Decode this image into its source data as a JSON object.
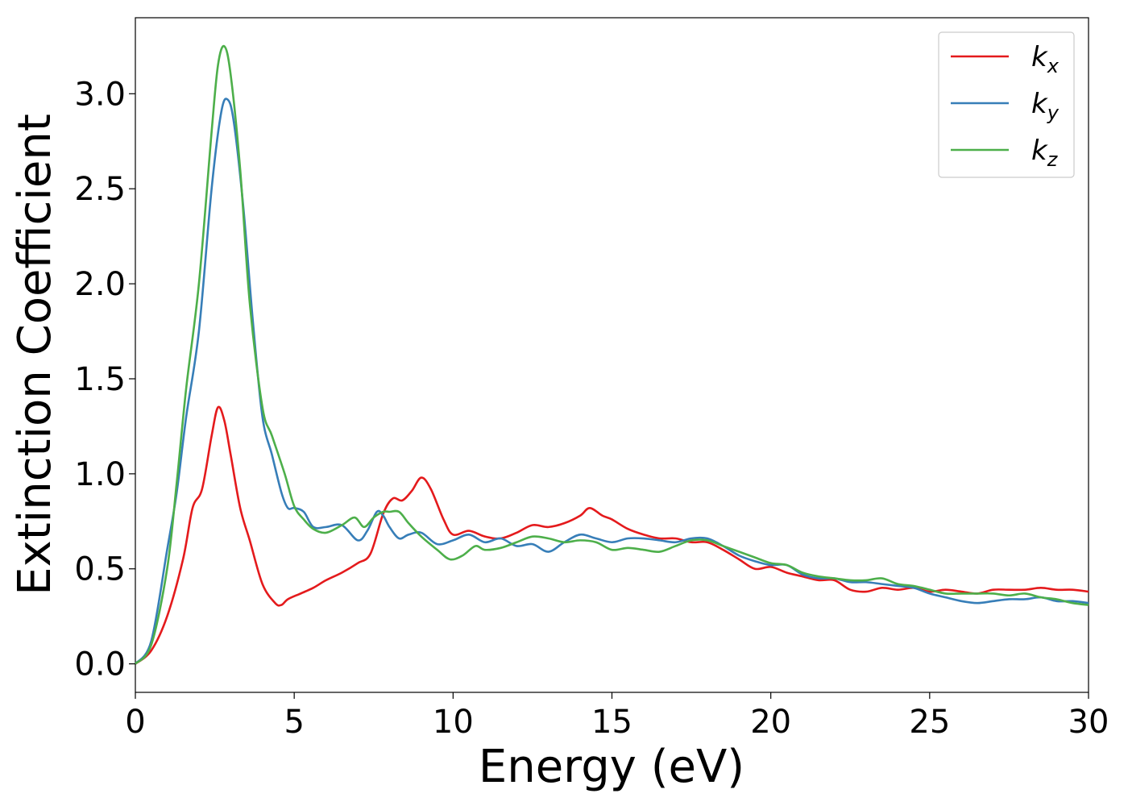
{
  "chart_data": {
    "type": "line",
    "title": "",
    "xlabel": "Energy (eV)",
    "ylabel": "Extinction Coefficient",
    "xlim": [
      0,
      30
    ],
    "ylim": [
      -0.15,
      3.4
    ],
    "xticks": [
      0,
      5,
      10,
      15,
      20,
      25,
      30
    ],
    "xtick_labels": [
      "0",
      "5",
      "10",
      "15",
      "20",
      "25",
      "30"
    ],
    "yticks": [
      0.0,
      0.5,
      1.0,
      1.5,
      2.0,
      2.5,
      3.0
    ],
    "ytick_labels": [
      "0.0",
      "0.5",
      "1.0",
      "1.5",
      "2.0",
      "2.5",
      "3.0"
    ],
    "grid": false,
    "legend_position": "top-right",
    "series": [
      {
        "name": "k",
        "subscript": "x",
        "color": "#e41a1c",
        "x": [
          0,
          0.5,
          1.0,
          1.5,
          1.8,
          2.1,
          2.4,
          2.6,
          2.8,
          3.0,
          3.3,
          3.6,
          4.0,
          4.4,
          4.6,
          4.8,
          5.2,
          5.6,
          6.0,
          6.5,
          7.0,
          7.4,
          7.8,
          8.1,
          8.4,
          8.7,
          9.0,
          9.3,
          9.7,
          10.0,
          10.5,
          11.0,
          11.5,
          12.0,
          12.5,
          13.0,
          13.5,
          14.0,
          14.3,
          14.7,
          15.0,
          15.5,
          16.0,
          16.5,
          17.0,
          17.5,
          18.0,
          18.5,
          19.0,
          19.5,
          20.0,
          20.5,
          21.0,
          21.5,
          22.0,
          22.5,
          23.0,
          23.5,
          24.0,
          24.5,
          25.0,
          25.5,
          26.0,
          26.5,
          27.0,
          27.5,
          28.0,
          28.5,
          29.0,
          29.5,
          30.0
        ],
        "y": [
          0,
          0.07,
          0.25,
          0.55,
          0.82,
          0.92,
          1.2,
          1.35,
          1.28,
          1.1,
          0.82,
          0.65,
          0.42,
          0.32,
          0.31,
          0.34,
          0.37,
          0.4,
          0.44,
          0.48,
          0.53,
          0.58,
          0.79,
          0.87,
          0.86,
          0.91,
          0.98,
          0.92,
          0.76,
          0.68,
          0.7,
          0.67,
          0.66,
          0.69,
          0.73,
          0.72,
          0.74,
          0.78,
          0.82,
          0.78,
          0.76,
          0.71,
          0.68,
          0.66,
          0.66,
          0.64,
          0.64,
          0.6,
          0.55,
          0.5,
          0.51,
          0.48,
          0.46,
          0.44,
          0.44,
          0.39,
          0.38,
          0.4,
          0.39,
          0.4,
          0.38,
          0.39,
          0.38,
          0.37,
          0.39,
          0.39,
          0.39,
          0.4,
          0.39,
          0.39,
          0.38
        ]
      },
      {
        "name": "k",
        "subscript": "y",
        "color": "#377eb8",
        "x": [
          0,
          0.5,
          1.0,
          1.3,
          1.6,
          2.0,
          2.4,
          2.7,
          2.9,
          3.1,
          3.4,
          3.7,
          4.0,
          4.3,
          4.6,
          4.8,
          5.0,
          5.3,
          5.6,
          6.0,
          6.5,
          7.0,
          7.3,
          7.6,
          7.8,
          8.0,
          8.3,
          8.6,
          9.0,
          9.5,
          10.0,
          10.5,
          11.0,
          11.5,
          12.0,
          12.5,
          13.0,
          13.5,
          14.0,
          14.5,
          15.0,
          15.5,
          16.0,
          16.5,
          17.0,
          17.5,
          18.0,
          18.5,
          19.0,
          19.5,
          20.0,
          20.5,
          21.0,
          21.5,
          22.0,
          22.5,
          23.0,
          23.5,
          24.0,
          24.5,
          25.0,
          25.5,
          26.0,
          26.5,
          27.0,
          27.5,
          28.0,
          28.5,
          29.0,
          29.5,
          30.0
        ],
        "y": [
          0,
          0.12,
          0.6,
          0.9,
          1.3,
          1.75,
          2.5,
          2.9,
          2.97,
          2.85,
          2.4,
          1.8,
          1.3,
          1.1,
          0.9,
          0.82,
          0.82,
          0.8,
          0.72,
          0.72,
          0.73,
          0.65,
          0.7,
          0.8,
          0.78,
          0.72,
          0.66,
          0.68,
          0.69,
          0.63,
          0.65,
          0.68,
          0.64,
          0.66,
          0.62,
          0.63,
          0.59,
          0.64,
          0.68,
          0.66,
          0.64,
          0.66,
          0.66,
          0.65,
          0.64,
          0.66,
          0.66,
          0.62,
          0.57,
          0.54,
          0.52,
          0.52,
          0.47,
          0.45,
          0.45,
          0.43,
          0.43,
          0.42,
          0.41,
          0.4,
          0.37,
          0.35,
          0.33,
          0.32,
          0.33,
          0.34,
          0.34,
          0.35,
          0.33,
          0.33,
          0.32
        ]
      },
      {
        "name": "k",
        "subscript": "z",
        "color": "#4daf4a",
        "x": [
          0,
          0.5,
          1.0,
          1.3,
          1.6,
          2.0,
          2.4,
          2.6,
          2.8,
          3.0,
          3.3,
          3.6,
          4.0,
          4.3,
          4.7,
          5.0,
          5.3,
          5.6,
          6.0,
          6.5,
          6.9,
          7.2,
          7.5,
          7.8,
          8.0,
          8.3,
          8.6,
          9.0,
          9.5,
          9.9,
          10.3,
          10.7,
          11.0,
          11.5,
          12.0,
          12.5,
          13.0,
          13.5,
          14.0,
          14.5,
          15.0,
          15.5,
          16.0,
          16.5,
          17.0,
          17.5,
          18.0,
          18.5,
          19.0,
          19.5,
          20.0,
          20.5,
          21.0,
          21.5,
          22.0,
          22.5,
          23.0,
          23.5,
          24.0,
          24.5,
          25.0,
          25.5,
          26.0,
          26.5,
          27.0,
          27.5,
          28.0,
          28.5,
          29.0,
          29.5,
          30.0
        ],
        "y": [
          0,
          0.1,
          0.5,
          0.95,
          1.45,
          2.0,
          2.8,
          3.15,
          3.25,
          3.1,
          2.6,
          1.9,
          1.35,
          1.2,
          1.0,
          0.83,
          0.76,
          0.71,
          0.69,
          0.73,
          0.77,
          0.72,
          0.77,
          0.8,
          0.8,
          0.8,
          0.74,
          0.67,
          0.6,
          0.55,
          0.57,
          0.62,
          0.6,
          0.61,
          0.64,
          0.67,
          0.66,
          0.64,
          0.65,
          0.64,
          0.6,
          0.61,
          0.6,
          0.59,
          0.62,
          0.65,
          0.65,
          0.62,
          0.59,
          0.56,
          0.53,
          0.52,
          0.48,
          0.46,
          0.45,
          0.44,
          0.44,
          0.45,
          0.42,
          0.41,
          0.39,
          0.37,
          0.37,
          0.37,
          0.37,
          0.36,
          0.37,
          0.35,
          0.34,
          0.32,
          0.31
        ]
      }
    ]
  }
}
